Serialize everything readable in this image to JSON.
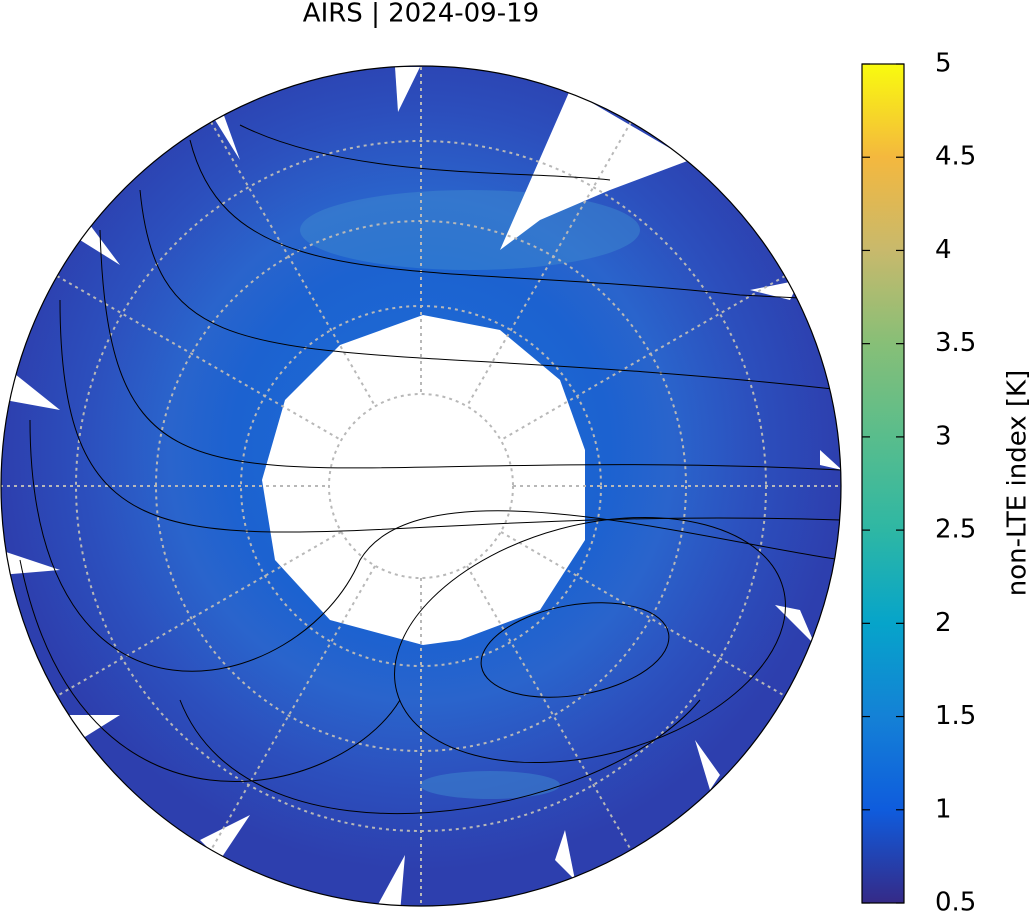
{
  "title": "AIRS | 2024-09-19",
  "colorbar": {
    "label": "non-LTE index [K]",
    "lim": [
      0.5,
      5
    ],
    "ticks": [
      0.5,
      1,
      1.5,
      2,
      2.5,
      3,
      3.5,
      4,
      4.5,
      5
    ]
  }
}
